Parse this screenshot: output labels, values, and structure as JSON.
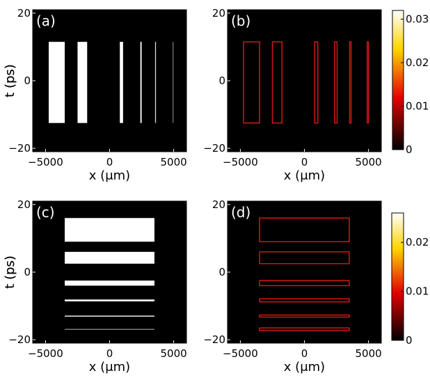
{
  "chart_data": [
    {
      "panel": "(a)",
      "type": "heatmap",
      "colormap": "gray",
      "xlabel": "x (μm)",
      "ylabel": "t (ps)",
      "xlim": [
        -6000,
        6000
      ],
      "ylim": [
        -21,
        21
      ],
      "xticks": [
        "-5000",
        "0",
        "5000"
      ],
      "yticks": [
        "20",
        "0",
        "-20"
      ],
      "bars": [
        {
          "x0": -4750,
          "x1": -3500,
          "t0": -12.5,
          "t1": 11.5,
          "value": 1
        },
        {
          "x0": -2500,
          "x1": -1750,
          "t0": -12.5,
          "t1": 11.5,
          "value": 1
        },
        {
          "x0": 800,
          "x1": 1050,
          "t0": -12.5,
          "t1": 11.5,
          "value": 1
        },
        {
          "x0": 2400,
          "x1": 2500,
          "t0": -12.5,
          "t1": 11.5,
          "value": 1
        },
        {
          "x0": 3550,
          "x1": 3620,
          "t0": -12.5,
          "t1": 11.5,
          "value": 0.85
        },
        {
          "x0": 4930,
          "x1": 4970,
          "t0": -12.5,
          "t1": 11.5,
          "value": 0.6
        }
      ]
    },
    {
      "panel": "(b)",
      "type": "heatmap",
      "colormap": "hot",
      "xlabel": "x (μm)",
      "ylabel": "t (ps)",
      "xlim": [
        -6000,
        6000
      ],
      "ylim": [
        -21,
        21
      ],
      "xticks": [
        "-5000",
        "0",
        "5000"
      ],
      "yticks": [
        "20",
        "0",
        "-20"
      ],
      "colorbar": {
        "min": 0,
        "max": 0.032,
        "ticks": [
          "0.03",
          "0.02",
          "0.01",
          "0"
        ]
      },
      "outlines": [
        {
          "x0": -4750,
          "x1": -3500,
          "t0": -12.5,
          "t1": 11.5
        },
        {
          "x0": -2500,
          "x1": -1750,
          "t0": -12.5,
          "t1": 11.5
        },
        {
          "x0": 800,
          "x1": 1050,
          "t0": -12.5,
          "t1": 11.5
        },
        {
          "x0": 2350,
          "x1": 2550,
          "t0": -12.5,
          "t1": 11.5
        },
        {
          "x0": 3530,
          "x1": 3640,
          "t0": -12.5,
          "t1": 11.5
        },
        {
          "x0": 4900,
          "x1": 5000,
          "t0": -12.5,
          "t1": 11.5
        }
      ]
    },
    {
      "panel": "(c)",
      "type": "heatmap",
      "colormap": "gray",
      "xlabel": "x (μm)",
      "ylabel": "t (ps)",
      "xlim": [
        -6000,
        6000
      ],
      "ylim": [
        -21,
        21
      ],
      "xticks": [
        "-5000",
        "0",
        "5000"
      ],
      "yticks": [
        "20",
        "0",
        "-20"
      ],
      "bars": [
        {
          "x0": -3500,
          "x1": 3500,
          "t0": 9,
          "t1": 16,
          "value": 1
        },
        {
          "x0": -3500,
          "x1": 3500,
          "t0": 2.5,
          "t1": 6,
          "value": 1
        },
        {
          "x0": -3500,
          "x1": 3500,
          "t0": -4,
          "t1": -2.5,
          "value": 1
        },
        {
          "x0": -3500,
          "x1": 3500,
          "t0": -8.65,
          "t1": -8.1,
          "value": 1
        },
        {
          "x0": -3500,
          "x1": 3500,
          "t0": -13.2,
          "t1": -12.85,
          "value": 0.85
        },
        {
          "x0": -3500,
          "x1": 3500,
          "t0": -17.05,
          "t1": -16.8,
          "value": 0.6
        }
      ]
    },
    {
      "panel": "(d)",
      "type": "heatmap",
      "colormap": "hot",
      "xlabel": "x (μm)",
      "ylabel": "t (ps)",
      "xlim": [
        -6000,
        6000
      ],
      "ylim": [
        -21,
        21
      ],
      "xticks": [
        "-5000",
        "0",
        "5000"
      ],
      "yticks": [
        "20",
        "0",
        "-20"
      ],
      "colorbar": {
        "min": 0,
        "max": 0.026,
        "ticks": [
          "0.02",
          "0.01",
          "0"
        ]
      },
      "outlines": [
        {
          "x0": -3500,
          "x1": 3500,
          "t0": 9,
          "t1": 16
        },
        {
          "x0": -3500,
          "x1": 3500,
          "t0": 2.5,
          "t1": 6
        },
        {
          "x0": -3500,
          "x1": 3500,
          "t0": -4,
          "t1": -2.5
        },
        {
          "x0": -3500,
          "x1": 3500,
          "t0": -8.8,
          "t1": -7.9
        },
        {
          "x0": -3500,
          "x1": 3500,
          "t0": -13.3,
          "t1": -12.7
        },
        {
          "x0": -3500,
          "x1": 3500,
          "t0": -17.3,
          "t1": -16.5
        }
      ]
    }
  ]
}
